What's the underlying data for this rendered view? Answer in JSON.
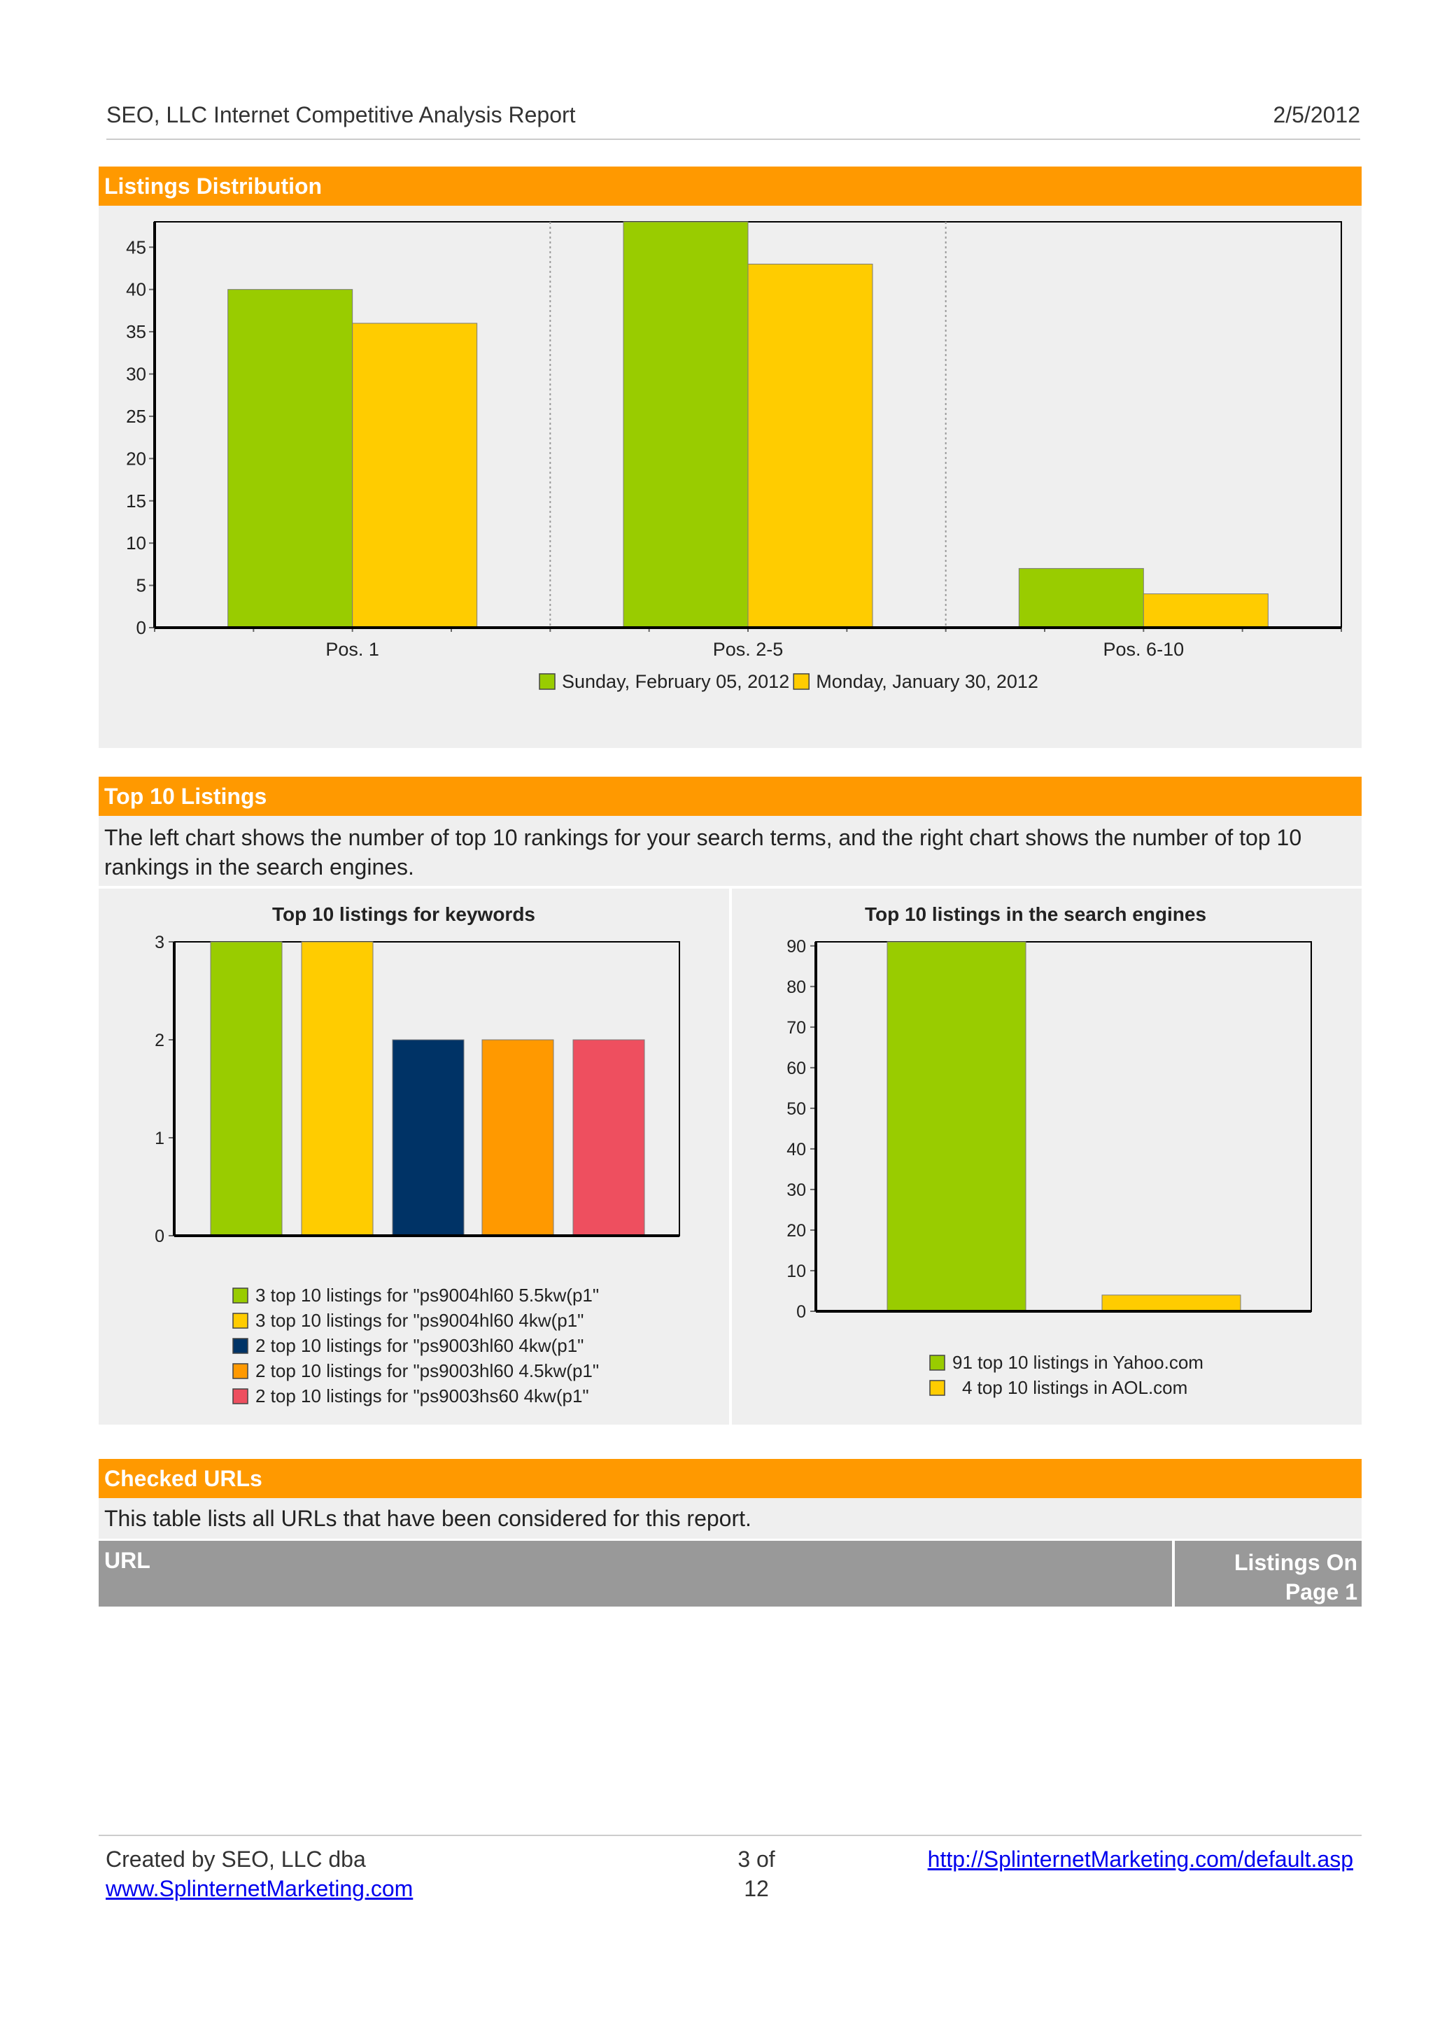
{
  "header": {
    "title": "SEO, LLC Internet Competitive Analysis Report",
    "date": "2/5/2012"
  },
  "sections": {
    "listings_distribution": "Listings Distribution",
    "top10": "Top 10 Listings",
    "checked_urls": "Checked URLs"
  },
  "top10_description": "The left chart shows the number of top 10 rankings for your search terms, and the right chart shows the number of top 10 rankings in the search engines.",
  "checked_description": "This table lists all URLs that have been considered for this report.",
  "table": {
    "col_url": "URL",
    "col_listings_line1": "Listings On",
    "col_listings_line2": "Page 1"
  },
  "footer": {
    "created_line1": "Created by SEO, LLC dba",
    "created_link": "www.SplinternetMarketing.com",
    "page_line1": "3 of",
    "page_line2": "12",
    "url": "http://SplinternetMarketing.com/default.asp"
  },
  "chart_data": [
    {
      "type": "bar",
      "title": "",
      "categories": [
        "Pos. 1",
        "Pos. 2-5",
        "Pos. 6-10"
      ],
      "series": [
        {
          "name": "Sunday, February 05, 2012",
          "values": [
            40,
            48,
            7
          ],
          "color": "#99cc00"
        },
        {
          "name": "Monday, January 30, 2012",
          "values": [
            36,
            43,
            4
          ],
          "color": "#ffcc00"
        }
      ],
      "ylim": [
        0,
        48
      ],
      "yticks": [
        0,
        5,
        10,
        15,
        20,
        25,
        30,
        35,
        40,
        45
      ],
      "legend": "bottom",
      "grid": "vertical-dotted"
    },
    {
      "type": "bar",
      "title": "Top 10 listings for keywords",
      "series": [
        {
          "name": "3 top 10 listings for \"ps9004hl60  5.5kw(p1\"",
          "value": 3,
          "color": "#99cc00"
        },
        {
          "name": "3 top 10 listings for \"ps9004hl60  4kw(p1\"",
          "value": 3,
          "color": "#ffcc00"
        },
        {
          "name": "2 top 10 listings for \"ps9003hl60  4kw(p1\"",
          "value": 2,
          "color": "#003366"
        },
        {
          "name": "2 top 10 listings for \"ps9003hl60  4.5kw(p1\"",
          "value": 2,
          "color": "#ff9900"
        },
        {
          "name": "2 top 10 listings for \"ps9003hs60  4kw(p1\"",
          "value": 2,
          "color": "#ee4f5f"
        }
      ],
      "ylim": [
        0,
        3
      ],
      "yticks": [
        0,
        1,
        2,
        3
      ],
      "legend": "bottom"
    },
    {
      "type": "bar",
      "title": "Top 10 listings in the search engines",
      "series": [
        {
          "name": "91 top 10 listings in Yahoo.com",
          "value": 91,
          "color": "#99cc00"
        },
        {
          "name": "4 top 10 listings in AOL.com",
          "value": 4,
          "color": "#ffcc00"
        }
      ],
      "ylim": [
        0,
        91
      ],
      "yticks": [
        0,
        10,
        20,
        30,
        40,
        50,
        60,
        70,
        80,
        90
      ],
      "legend": "bottom"
    }
  ]
}
